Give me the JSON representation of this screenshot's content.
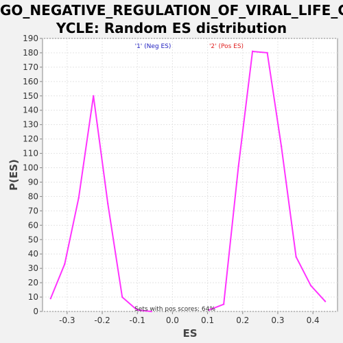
{
  "chart_data": {
    "type": "line",
    "title_lines": [
      "GO_NEGATIVE_REGULATION_OF_VIRAL_LIFE_C",
      "YCLE: Random ES distribution"
    ],
    "xlabel": "ES",
    "ylabel": "P(ES)",
    "xlim": [
      -0.37,
      0.47
    ],
    "ylim": [
      0,
      190
    ],
    "x_ticks": [
      -0.3,
      -0.2,
      -0.1,
      0.0,
      0.1,
      0.2,
      0.3,
      0.4
    ],
    "x_tick_labels": [
      "-0.3",
      "-0.2",
      "-0.1",
      "0.0",
      "0.1",
      "0.2",
      "0.3",
      "0.4"
    ],
    "y_ticks": [
      0,
      10,
      20,
      30,
      40,
      50,
      60,
      70,
      80,
      90,
      100,
      110,
      120,
      130,
      140,
      150,
      160,
      170,
      180,
      190
    ],
    "grid": true,
    "legend": [
      {
        "label": "'1' (Neg ES)",
        "color": "#2020c0"
      },
      {
        "label": "'2' (Pos ES)",
        "color": "#e02020"
      }
    ],
    "annotation": "Sets with pos scores: 64%",
    "series": [
      {
        "color": "#ff33ff",
        "x": [
          -0.347,
          -0.307,
          -0.267,
          -0.225,
          -0.184,
          -0.143,
          -0.101,
          -0.06
        ],
        "y": [
          9,
          33,
          79,
          150,
          75,
          10,
          1,
          0
        ]
      },
      {
        "color": "#ff33ff",
        "x": [
          0.104,
          0.146,
          0.188,
          0.228,
          0.27,
          0.31,
          0.352,
          0.394,
          0.435
        ],
        "y": [
          1,
          5,
          101,
          181,
          180,
          115,
          38,
          18,
          7
        ]
      }
    ]
  }
}
